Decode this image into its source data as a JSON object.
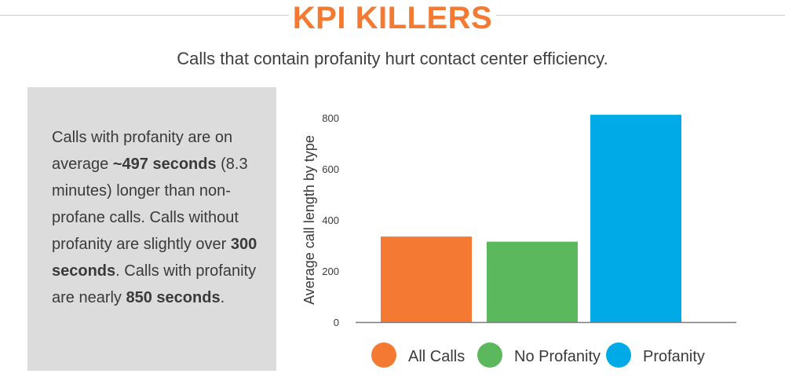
{
  "header": {
    "title": "KPI KILLERS",
    "subtitle": "Calls that contain profanity hurt contact center efficiency."
  },
  "panel": {
    "segments": [
      {
        "text": "Calls with profanity are on average ",
        "bold": false
      },
      {
        "text": "~497 seconds",
        "bold": true
      },
      {
        "text": " (8.3 minutes) longer than non-profane calls. Calls without profanity are slightly over ",
        "bold": false
      },
      {
        "text": "300 seconds",
        "bold": true
      },
      {
        "text": ". Calls with profanity are nearly ",
        "bold": false
      },
      {
        "text": "850 seconds",
        "bold": true
      },
      {
        "text": ".",
        "bold": false
      }
    ]
  },
  "chart_data": {
    "type": "bar",
    "categories": [
      "All Calls",
      "No Profanity",
      "Profanity"
    ],
    "values": [
      335,
      315,
      812
    ],
    "colors": [
      "#f47a33",
      "#5cb85c",
      "#00aae7"
    ],
    "title": "",
    "xlabel": "",
    "ylabel": "Average call length by type",
    "yticks": [
      0,
      200,
      400,
      600,
      800
    ],
    "ylim": [
      0,
      850
    ],
    "grid": false,
    "legend": "bottom"
  }
}
